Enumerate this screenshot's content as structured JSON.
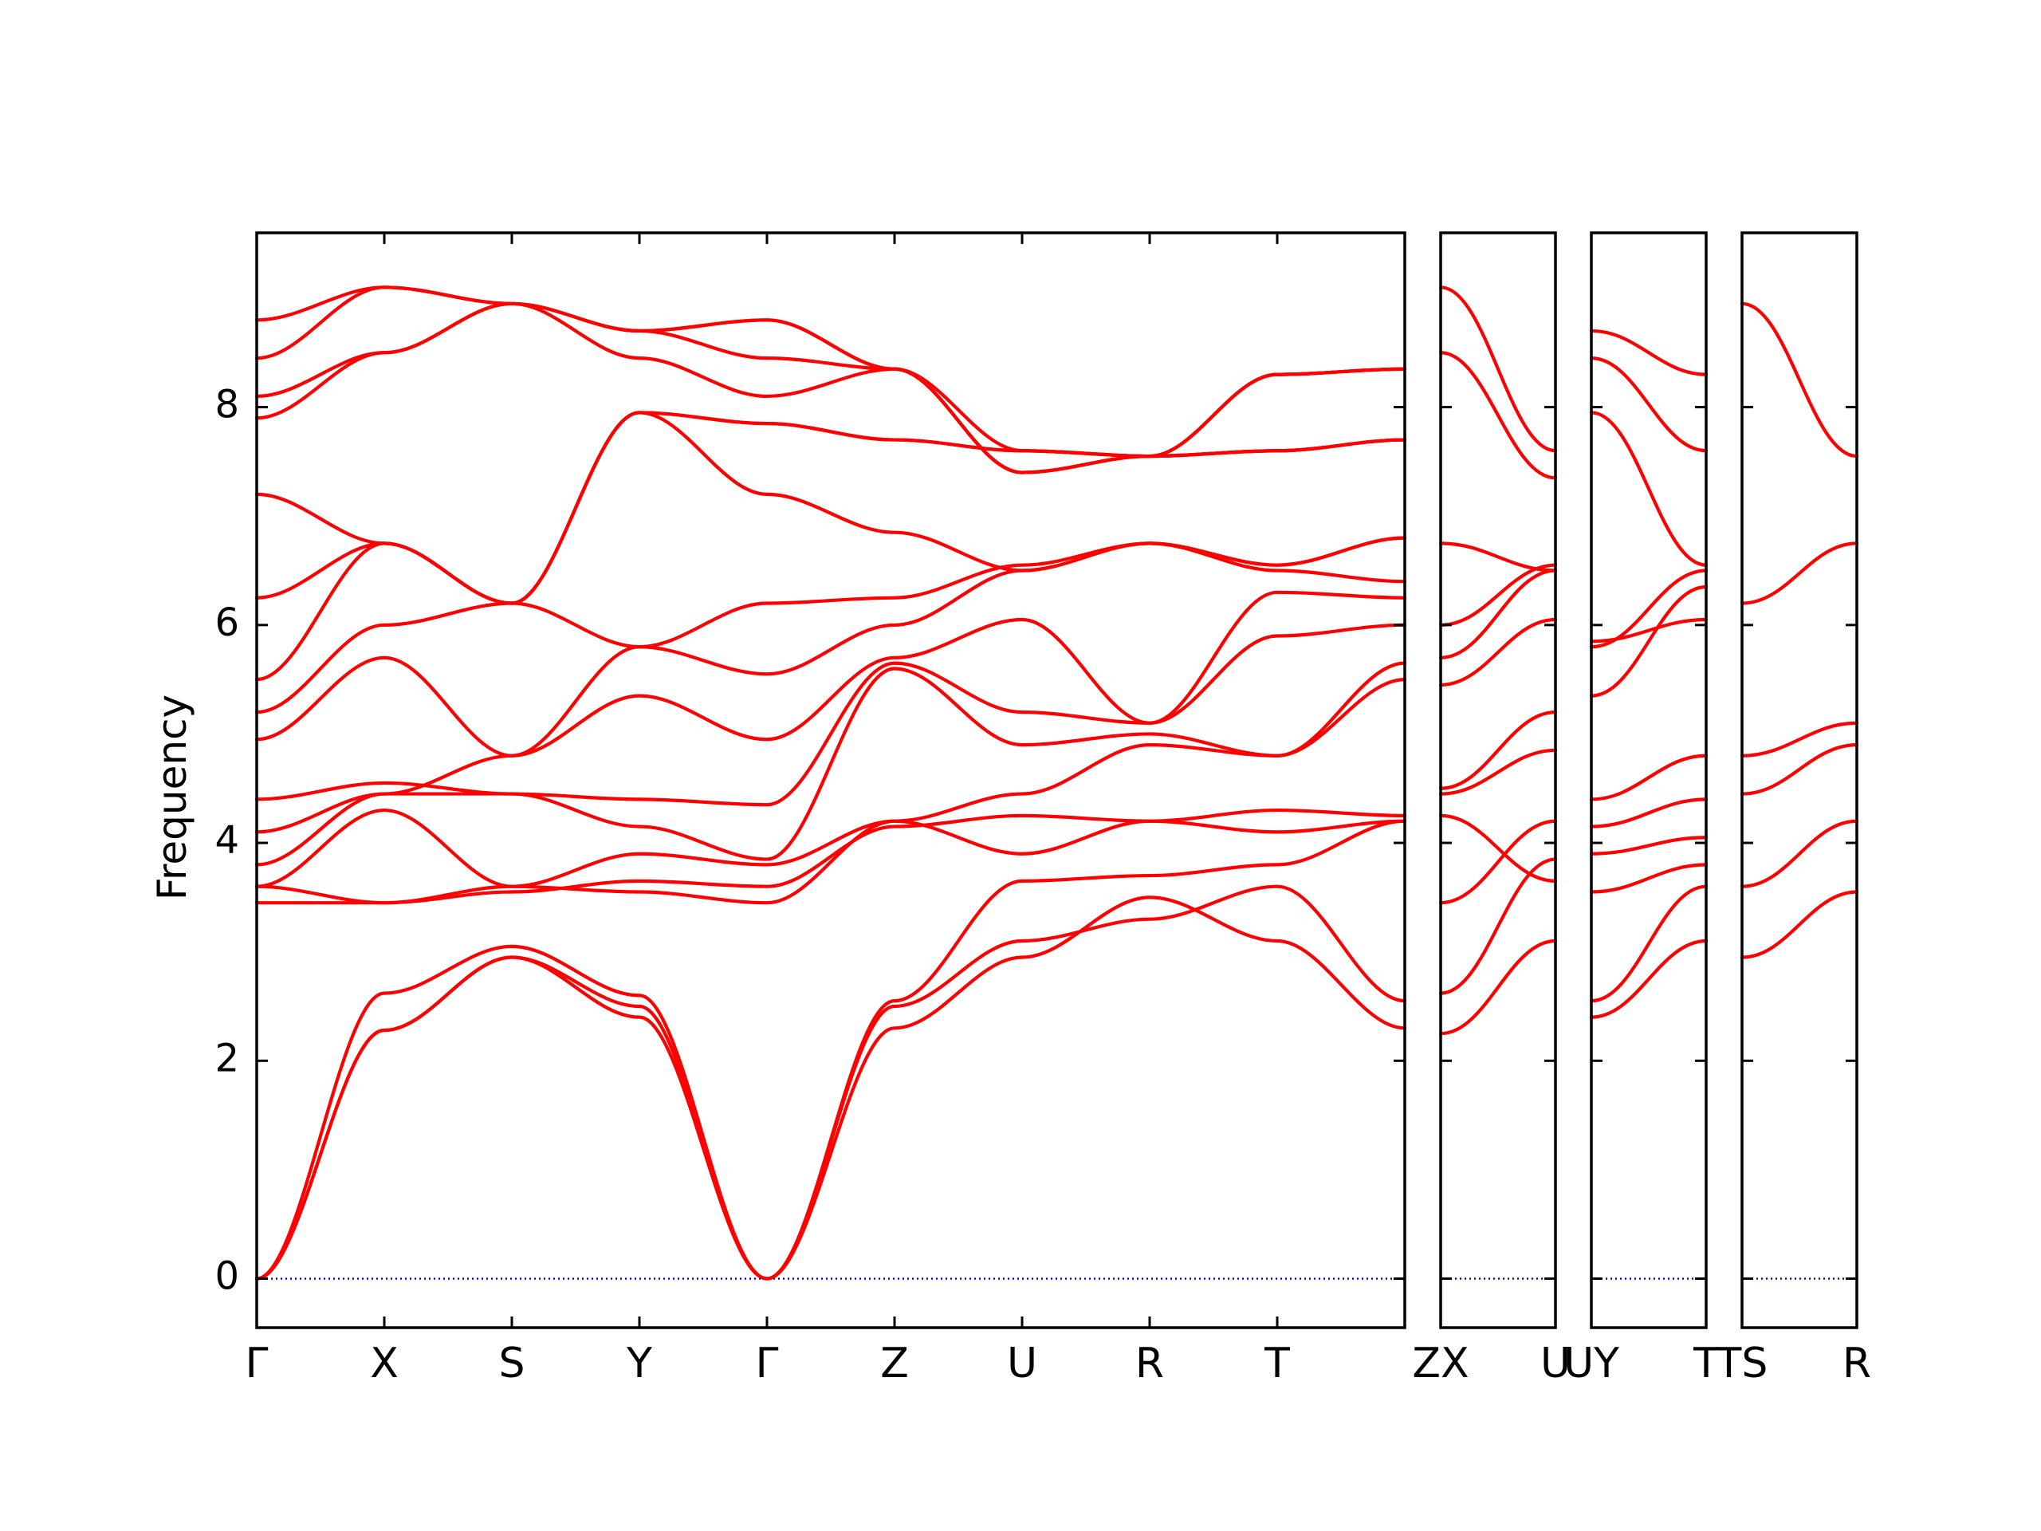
{
  "chart_data": {
    "type": "line",
    "title": "",
    "ylabel": "Frequency",
    "xlabel": "",
    "ylim": [
      -0.45,
      9.6
    ],
    "y_ticks": [
      0,
      2,
      4,
      6,
      8
    ],
    "grid": false,
    "colors": {
      "bands": "#ff0000",
      "zero_line": "#0000cc",
      "frame": "#000000"
    },
    "panels": [
      {
        "points": [
          "Γ",
          "X",
          "S",
          "Y",
          "Γ",
          "Z",
          "U",
          "R",
          "T",
          "Z"
        ],
        "point_labels": [
          "Γ",
          "X",
          "S",
          "Y",
          "Γ",
          "Z",
          "U",
          "R",
          "T",
          ""
        ],
        "series": [
          {
            "values": [
              0,
              2.28,
              2.95,
              2.4,
              0,
              2.3,
              2.95,
              3.5,
              3.1,
              2.3
            ]
          },
          {
            "values": [
              0,
              2.28,
              2.95,
              2.5,
              0,
              2.5,
              3.1,
              3.3,
              3.6,
              2.55
            ]
          },
          {
            "values": [
              0,
              2.62,
              3.05,
              2.6,
              0,
              2.55,
              3.65,
              3.7,
              3.8,
              4.2
            ]
          },
          {
            "values": [
              3.45,
              3.45,
              3.6,
              3.55,
              3.45,
              4.2,
              3.9,
              4.2,
              4.1,
              4.2
            ]
          },
          {
            "values": [
              3.6,
              3.45,
              3.55,
              3.65,
              3.6,
              4.15,
              4.25,
              4.2,
              4.3,
              4.25
            ]
          },
          {
            "values": [
              3.6,
              4.3,
              3.6,
              3.9,
              3.8,
              4.2,
              4.45,
              4.9,
              4.8,
              5.5
            ]
          },
          {
            "values": [
              3.8,
              4.45,
              4.45,
              4.15,
              3.85,
              5.6,
              4.9,
              5.0,
              4.8,
              5.65
            ]
          },
          {
            "values": [
              4.4,
              4.55,
              4.45,
              4.4,
              4.35,
              5.65,
              5.2,
              5.1,
              5.9,
              6.0
            ]
          },
          {
            "values": [
              4.1,
              4.45,
              4.8,
              5.35,
              4.95,
              5.7,
              6.05,
              5.1,
              6.3,
              6.25
            ]
          },
          {
            "values": [
              4.95,
              5.7,
              4.8,
              5.8,
              5.55,
              6.0,
              6.5,
              6.75,
              6.5,
              6.4
            ]
          },
          {
            "values": [
              5.2,
              6.0,
              6.2,
              5.8,
              6.2,
              6.25,
              6.55,
              6.75,
              6.55,
              6.8
            ]
          },
          {
            "values": [
              5.5,
              6.75,
              6.2,
              7.95,
              7.2,
              6.85,
              6.5,
              6.75,
              6.55,
              6.8
            ]
          },
          {
            "values": [
              6.25,
              6.75,
              6.2,
              7.95,
              7.85,
              7.7,
              7.6,
              7.55,
              8.3,
              8.35
            ]
          },
          {
            "values": [
              7.2,
              6.75,
              6.2,
              7.95,
              7.85,
              7.7,
              7.6,
              7.55,
              8.3,
              8.35
            ]
          },
          {
            "values": [
              7.9,
              8.5,
              8.95,
              8.45,
              8.1,
              8.35,
              7.6,
              7.55,
              8.3,
              8.35
            ]
          },
          {
            "values": [
              8.1,
              8.5,
              8.95,
              8.7,
              8.45,
              8.35,
              7.4,
              7.55,
              7.6,
              7.7
            ]
          },
          {
            "values": [
              8.45,
              9.1,
              8.95,
              8.7,
              8.8,
              8.35,
              7.4,
              7.55,
              7.6,
              7.7
            ]
          },
          {
            "values": [
              8.8,
              9.1,
              8.95,
              8.7,
              8.8,
              8.35,
              7.4,
              7.55,
              7.6,
              7.7
            ]
          }
        ]
      },
      {
        "points": [
          "X",
          "U"
        ],
        "point_labels": [
          "ZX",
          "U"
        ],
        "series": [
          {
            "values": [
              2.25,
              3.1
            ]
          },
          {
            "values": [
              2.62,
              3.85
            ]
          },
          {
            "values": [
              3.45,
              4.2
            ]
          },
          {
            "values": [
              4.25,
              3.65
            ]
          },
          {
            "values": [
              4.45,
              4.85
            ]
          },
          {
            "values": [
              4.5,
              5.2
            ]
          },
          {
            "values": [
              5.45,
              6.05
            ]
          },
          {
            "values": [
              5.7,
              6.5
            ]
          },
          {
            "values": [
              6.0,
              6.55
            ]
          },
          {
            "values": [
              6.75,
              6.5
            ]
          },
          {
            "values": [
              8.5,
              7.35
            ]
          },
          {
            "values": [
              9.1,
              7.6
            ]
          }
        ]
      },
      {
        "points": [
          "Y",
          "T"
        ],
        "point_labels": [
          "UY",
          "T"
        ],
        "series": [
          {
            "values": [
              2.4,
              3.1
            ]
          },
          {
            "values": [
              2.55,
              3.6
            ]
          },
          {
            "values": [
              3.55,
              3.8
            ]
          },
          {
            "values": [
              3.9,
              4.05
            ]
          },
          {
            "values": [
              4.15,
              4.4
            ]
          },
          {
            "values": [
              4.4,
              4.8
            ]
          },
          {
            "values": [
              5.35,
              6.35
            ]
          },
          {
            "values": [
              5.8,
              6.5
            ]
          },
          {
            "values": [
              5.85,
              6.05
            ]
          },
          {
            "values": [
              7.95,
              6.55
            ]
          },
          {
            "values": [
              8.45,
              7.6
            ]
          },
          {
            "values": [
              8.7,
              8.3
            ]
          }
        ]
      },
      {
        "points": [
          "S",
          "R"
        ],
        "point_labels": [
          "TS",
          "R"
        ],
        "series": [
          {
            "values": [
              2.95,
              3.55
            ]
          },
          {
            "values": [
              3.6,
              4.2
            ]
          },
          {
            "values": [
              4.45,
              4.9
            ]
          },
          {
            "values": [
              4.8,
              5.1
            ]
          },
          {
            "values": [
              6.2,
              6.75
            ]
          },
          {
            "values": [
              8.95,
              7.55
            ]
          }
        ]
      }
    ]
  }
}
